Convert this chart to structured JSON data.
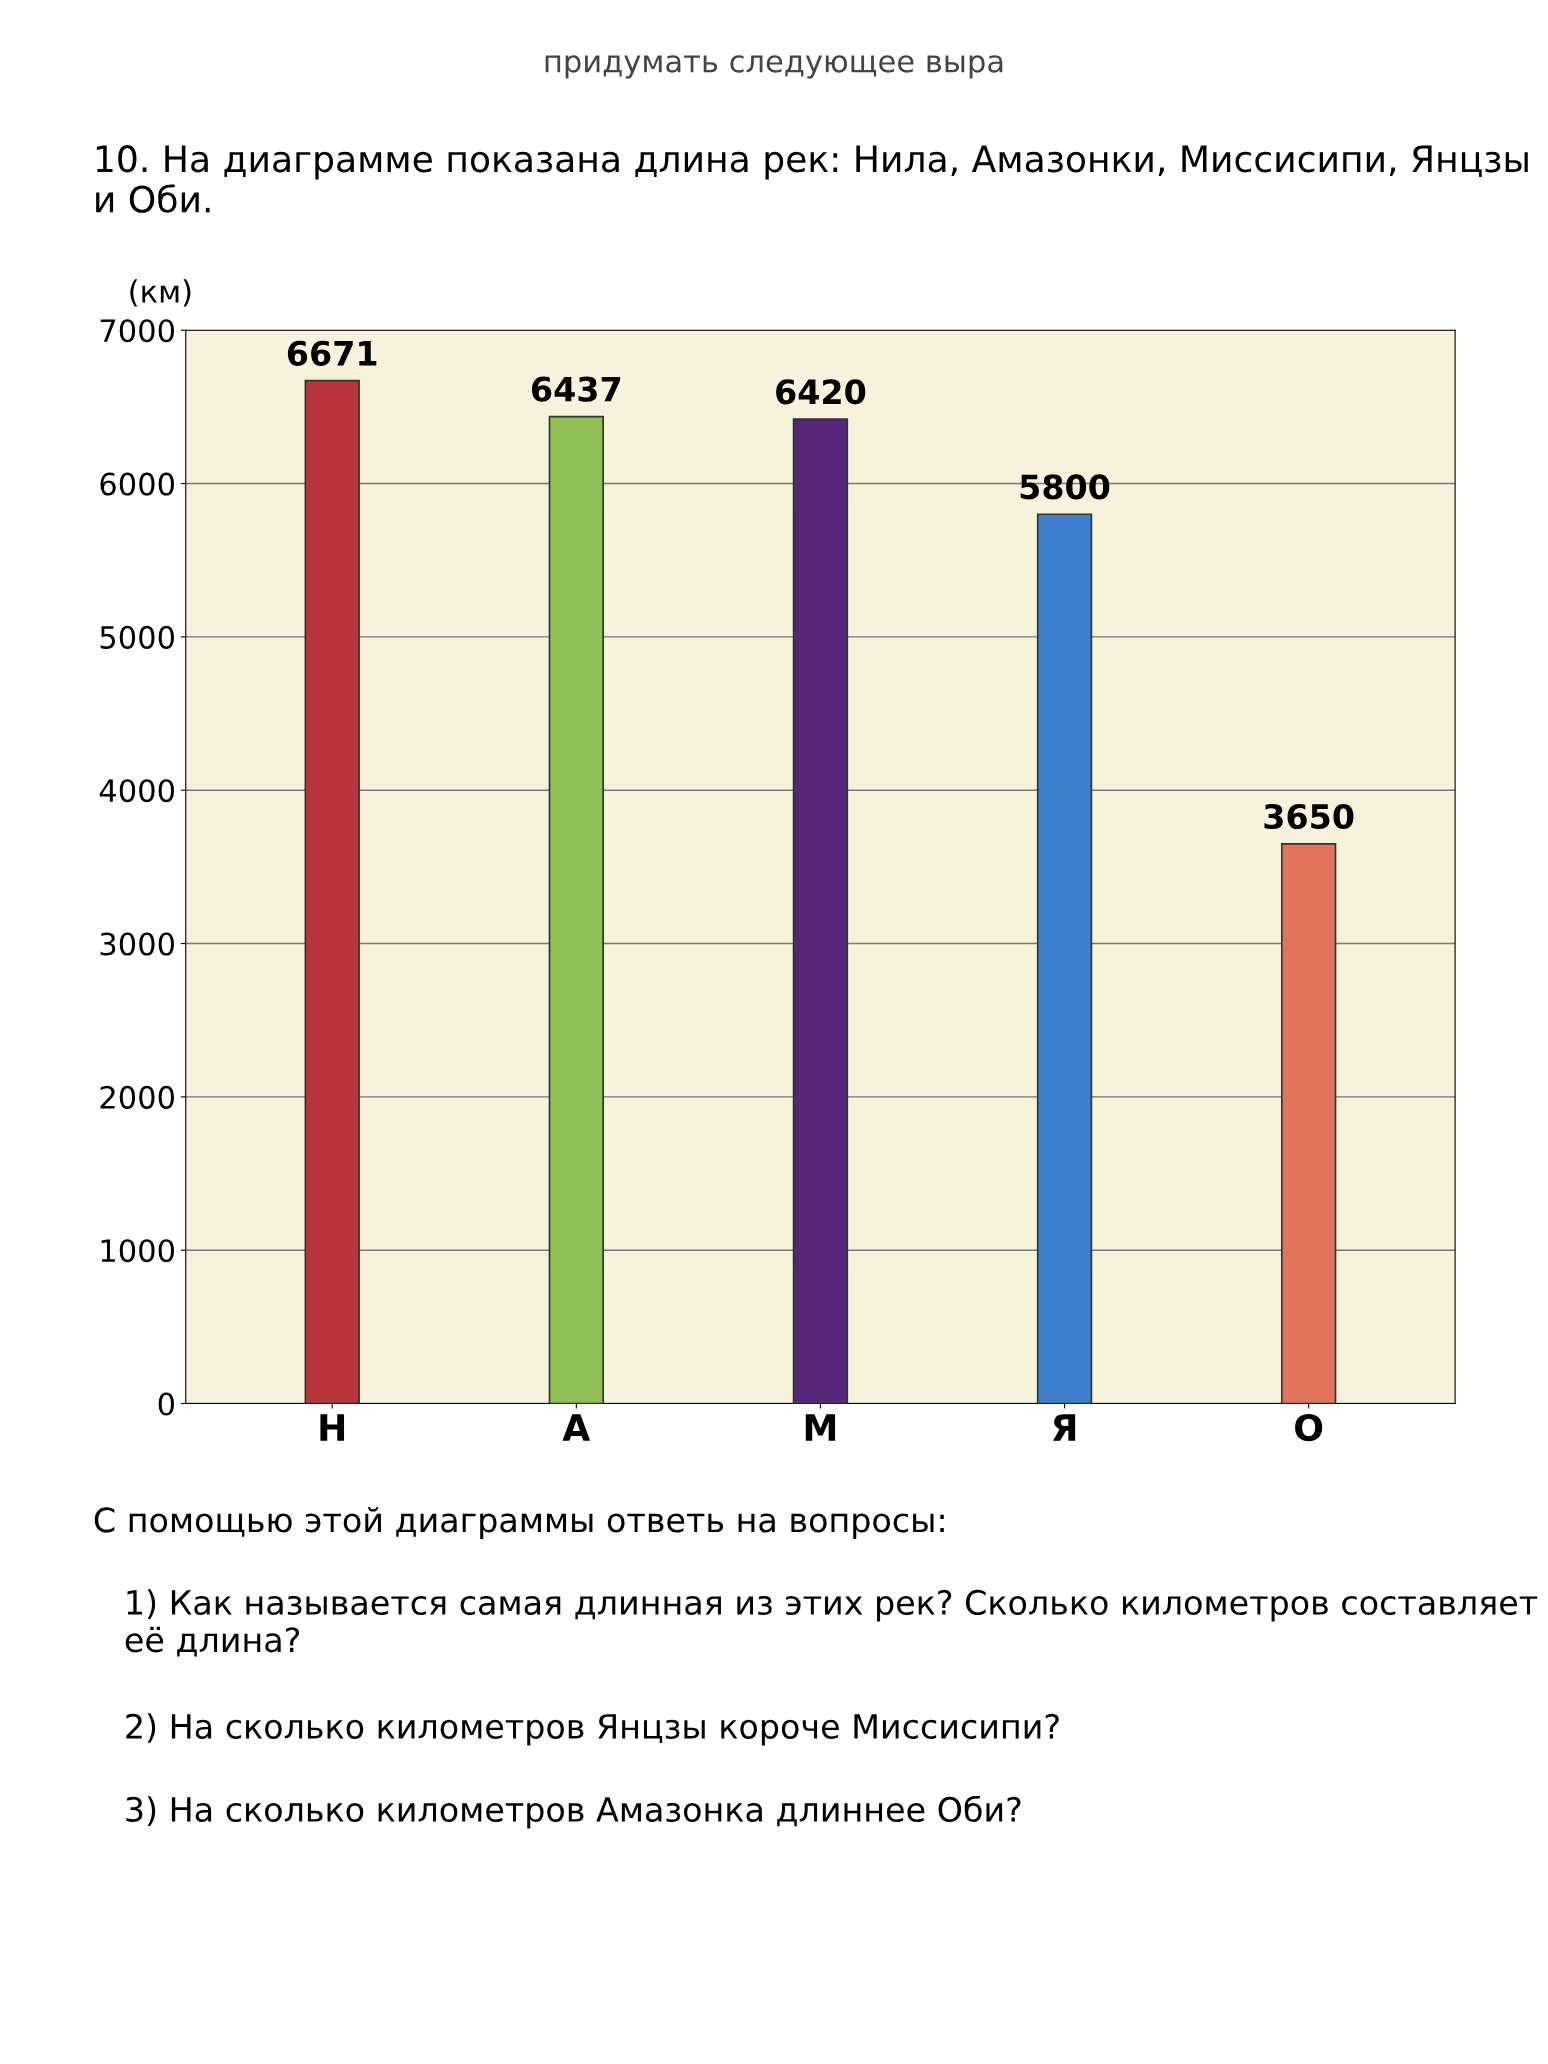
{
  "chart_data": {
    "type": "bar",
    "title": "10. На диаграмме показана длина рек: Нила, Амазонки, Миссисипи, Янцзы и Оби.",
    "subtitle": "придумать следующее выра",
    "ylabel": "(км)",
    "categories": [
      "Н",
      "А",
      "М",
      "Я",
      "О"
    ],
    "values": [
      6671,
      6437,
      6420,
      5800,
      3650
    ],
    "colors": [
      "#b8343c",
      "#8fbf55",
      "#55267a",
      "#3d7fcc",
      "#e2735c"
    ],
    "ylim": [
      0,
      7000
    ],
    "yticks": [
      0,
      1000,
      2000,
      3000,
      4000,
      5000,
      6000,
      7000
    ],
    "grid": "y",
    "data_labels": true,
    "annotations": [
      "С помощью этой диаграммы ответь на вопросы:",
      "1) Как называется самая длинная из этих рек? Сколько километров составляет её длина?",
      "2) На сколько километров Янцзы короче Миссисипи?",
      "3) На сколько километров Амазонка длиннее Оби?"
    ]
  }
}
